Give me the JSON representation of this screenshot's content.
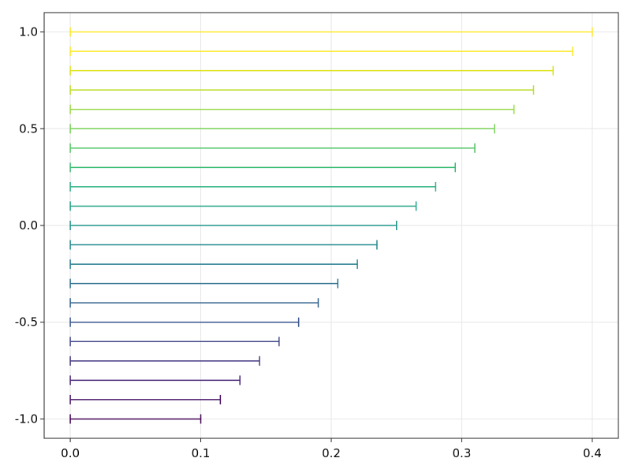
{
  "chart_data": {
    "type": "errorbar-horizontal",
    "title": "",
    "xlabel": "",
    "ylabel": "",
    "xlim": [
      -0.02,
      0.42
    ],
    "ylim": [
      -1.1,
      1.1
    ],
    "grid": true,
    "legend": "none",
    "x_ticks": [
      {
        "value": 0.0,
        "label": "0.0"
      },
      {
        "value": 0.1,
        "label": "0.1"
      },
      {
        "value": 0.2,
        "label": "0.2"
      },
      {
        "value": 0.3,
        "label": "0.3"
      },
      {
        "value": 0.4,
        "label": "0.4"
      }
    ],
    "y_ticks": [
      {
        "value": -1.0,
        "label": "-1.0"
      },
      {
        "value": -0.5,
        "label": "-0.5"
      },
      {
        "value": 0.0,
        "label": "0.0"
      },
      {
        "value": 0.5,
        "label": "0.5"
      },
      {
        "value": 1.0,
        "label": "1.0"
      }
    ],
    "colormap": "viridis",
    "bars": [
      {
        "y": -1.0,
        "x_low": 0.0,
        "x_high": 0.1,
        "color": "#440154"
      },
      {
        "y": -0.9,
        "x_low": 0.0,
        "x_high": 0.115,
        "color": "#481467"
      },
      {
        "y": -0.8,
        "x_low": 0.0,
        "x_high": 0.13,
        "color": "#482576"
      },
      {
        "y": -0.7,
        "x_low": 0.0,
        "x_high": 0.145,
        "color": "#453781"
      },
      {
        "y": -0.6,
        "x_low": 0.0,
        "x_high": 0.16,
        "color": "#404688"
      },
      {
        "y": -0.5,
        "x_low": 0.0,
        "x_high": 0.175,
        "color": "#39558c"
      },
      {
        "y": -0.4,
        "x_low": 0.0,
        "x_high": 0.19,
        "color": "#33638d"
      },
      {
        "y": -0.3,
        "x_low": 0.0,
        "x_high": 0.205,
        "color": "#2d718e"
      },
      {
        "y": -0.2,
        "x_low": 0.0,
        "x_high": 0.22,
        "color": "#287d8e"
      },
      {
        "y": -0.1,
        "x_low": 0.0,
        "x_high": 0.235,
        "color": "#238a8d"
      },
      {
        "y": 0.0,
        "x_low": 0.0,
        "x_high": 0.25,
        "color": "#1f968b"
      },
      {
        "y": 0.1,
        "x_low": 0.0,
        "x_high": 0.265,
        "color": "#20a386"
      },
      {
        "y": 0.2,
        "x_low": 0.0,
        "x_high": 0.28,
        "color": "#29af7f"
      },
      {
        "y": 0.3,
        "x_low": 0.0,
        "x_high": 0.295,
        "color": "#3dbc74"
      },
      {
        "y": 0.4,
        "x_low": 0.0,
        "x_high": 0.31,
        "color": "#56c667"
      },
      {
        "y": 0.5,
        "x_low": 0.0,
        "x_high": 0.325,
        "color": "#75d054"
      },
      {
        "y": 0.6,
        "x_low": 0.0,
        "x_high": 0.34,
        "color": "#95d840"
      },
      {
        "y": 0.7,
        "x_low": 0.0,
        "x_high": 0.355,
        "color": "#bade28"
      },
      {
        "y": 0.8,
        "x_low": 0.0,
        "x_high": 0.37,
        "color": "#dde318"
      },
      {
        "y": 0.9,
        "x_low": 0.0,
        "x_high": 0.385,
        "color": "#fde725"
      },
      {
        "y": 1.0,
        "x_low": 0.0,
        "x_high": 0.4,
        "color": "#fde725"
      }
    ]
  }
}
